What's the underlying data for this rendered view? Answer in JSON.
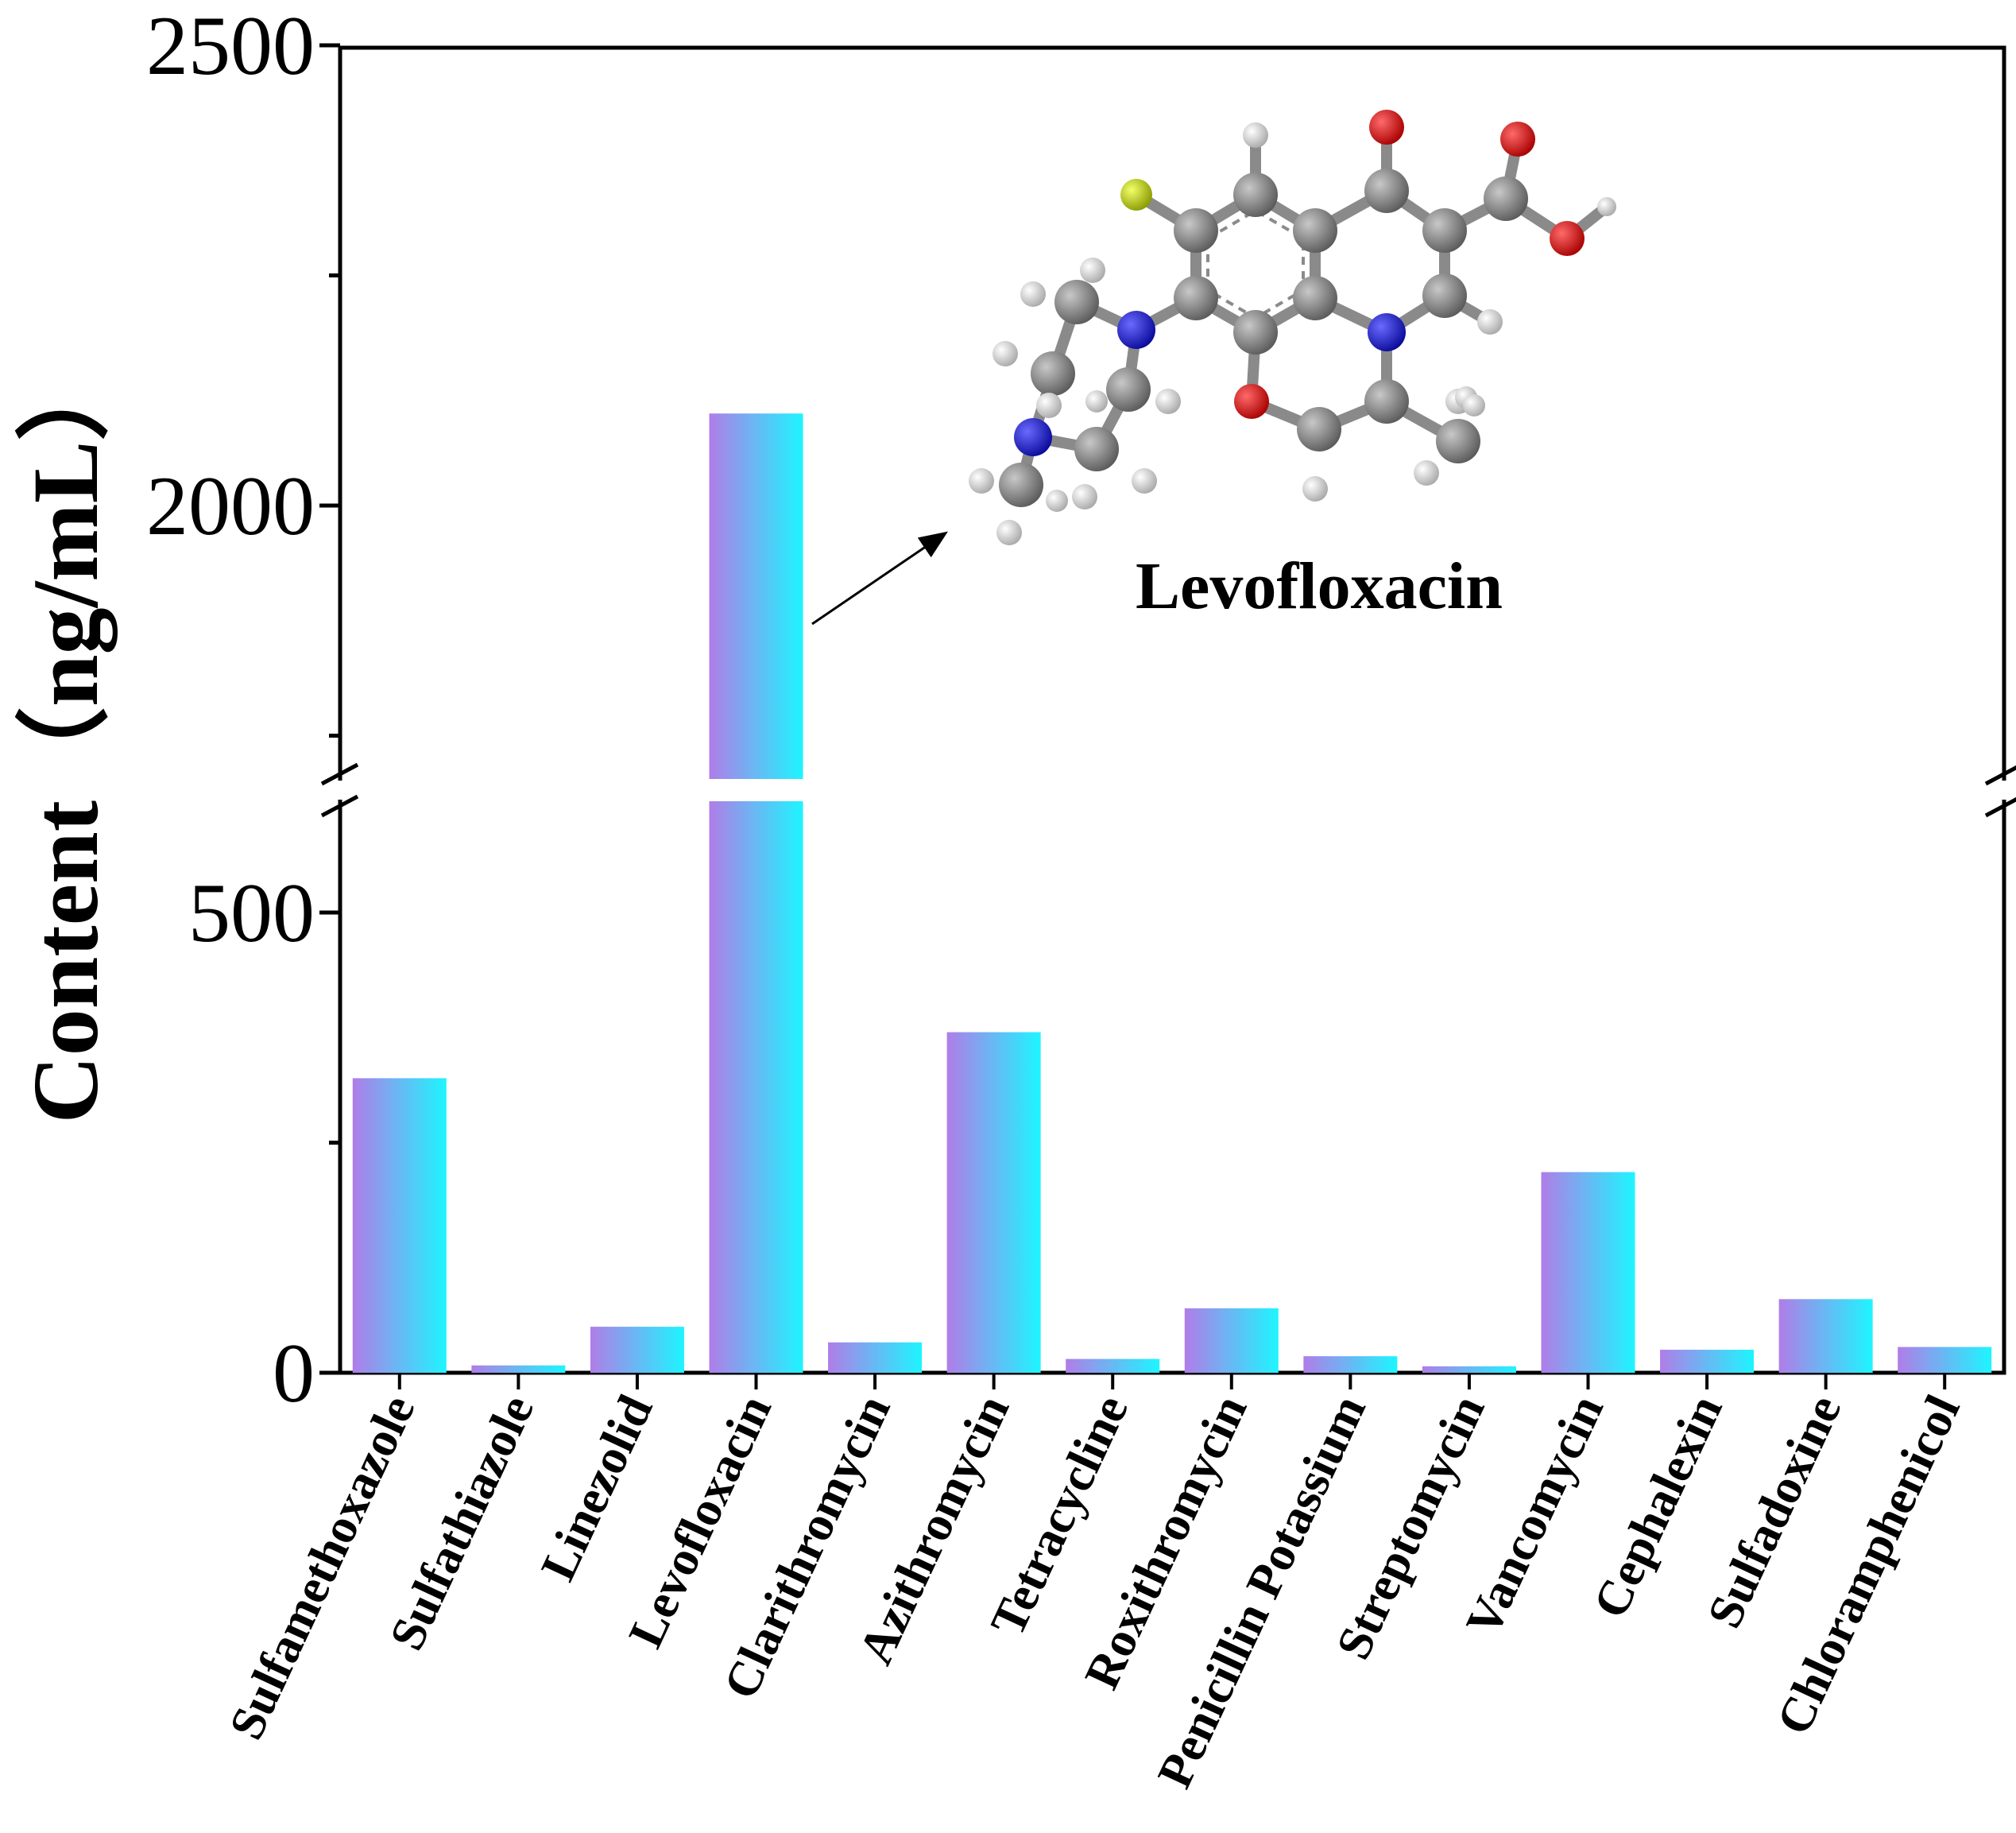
{
  "chart_data": {
    "type": "bar",
    "ylabel": "Content（ng/mL）",
    "y_axis": {
      "segments": [
        {
          "range": [
            0,
            620
          ],
          "ticks": [
            0,
            500
          ],
          "minor_ticks": [
            250
          ]
        },
        {
          "range": [
            1700,
            2500
          ],
          "ticks": [
            2000,
            2500
          ],
          "minor_ticks": [
            1750,
            2250
          ]
        }
      ],
      "break": [
        620,
        1700
      ]
    },
    "categories": [
      "Sulfamethoxazole",
      "Sulfathiazole",
      "Linezolid",
      "Levofloxacin",
      "Clarithromycin",
      "Azithromycin",
      "Tetracycline",
      "Roxithromycin",
      "Penicillin Potassium",
      "Streptomycin",
      "Vancomycin",
      "Cephalexin",
      "Sulfadoxine",
      "Chloramphenicol"
    ],
    "values": [
      320,
      8,
      50,
      2100,
      33,
      370,
      15,
      70,
      18,
      7,
      218,
      25,
      80,
      28
    ],
    "bar_gradient": [
      "#b07de8",
      "#1ef5ff"
    ],
    "annotation": {
      "text": "Levofloxacin",
      "target_category": "Levofloxacin",
      "image": "levofloxacin-molecule-ball-and-stick"
    },
    "grid": false,
    "legend": "none"
  }
}
